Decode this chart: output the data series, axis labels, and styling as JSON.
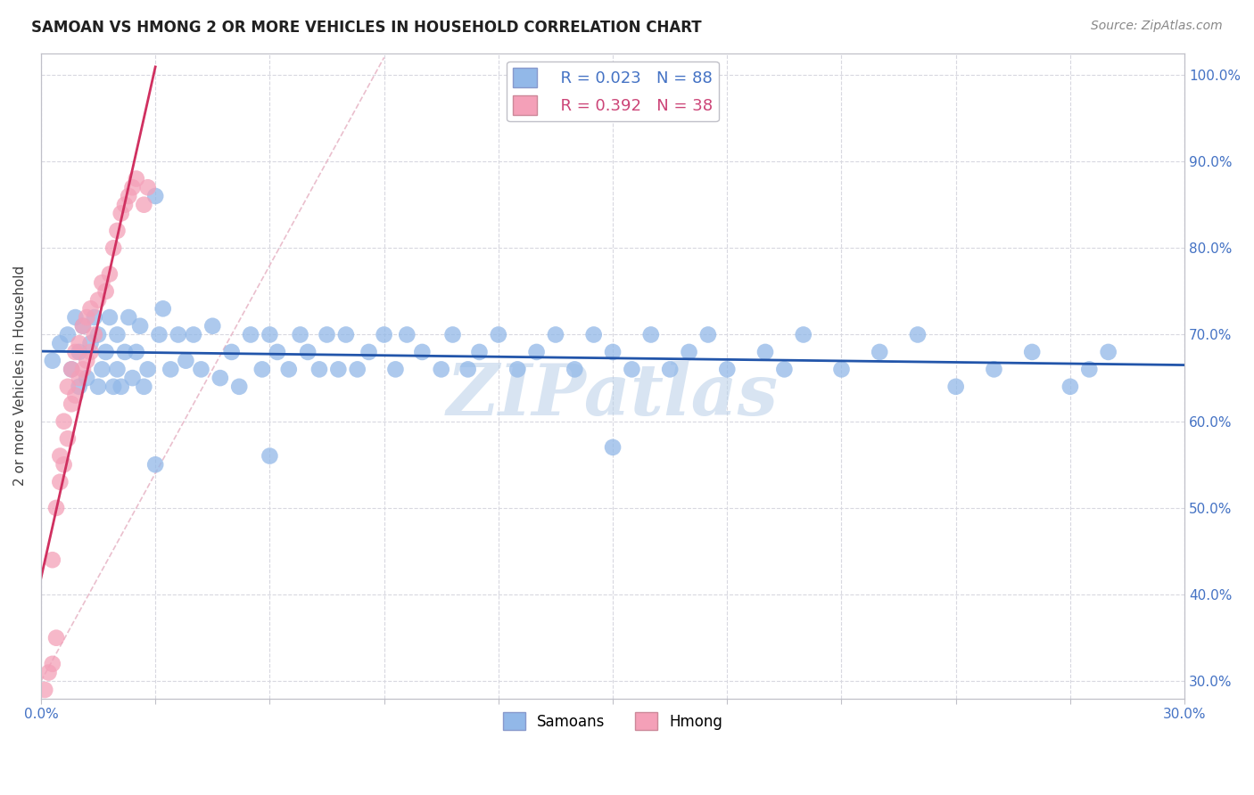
{
  "title": "SAMOAN VS HMONG 2 OR MORE VEHICLES IN HOUSEHOLD CORRELATION CHART",
  "source": "Source: ZipAtlas.com",
  "ylabel": "2 or more Vehicles in Household",
  "watermark": "ZIPatlas",
  "xlim": [
    0.0,
    0.3
  ],
  "ylim": [
    0.28,
    1.025
  ],
  "xtick_vals": [
    0.0,
    0.03,
    0.06,
    0.09,
    0.12,
    0.15,
    0.18,
    0.21,
    0.24,
    0.27,
    0.3
  ],
  "xtick_labels": [
    "0.0%",
    "",
    "",
    "",
    "",
    "",
    "",
    "",
    "",
    "",
    "30.0%"
  ],
  "ytick_vals": [
    0.3,
    0.4,
    0.5,
    0.6,
    0.7,
    0.8,
    0.9,
    1.0
  ],
  "ytick_labels": [
    "30.0%",
    "40.0%",
    "50.0%",
    "60.0%",
    "70.0%",
    "80.0%",
    "90.0%",
    "100.0%"
  ],
  "R_samoans": 0.023,
  "N_samoans": 88,
  "R_hmong": 0.392,
  "N_hmong": 38,
  "samoans_color": "#92b8e8",
  "hmong_color": "#f4a0b8",
  "samoans_line_color": "#2255aa",
  "hmong_line_color": "#d03060",
  "diagonal_color": "#e8b8c8",
  "samoans_x": [
    0.003,
    0.005,
    0.007,
    0.008,
    0.009,
    0.01,
    0.01,
    0.011,
    0.012,
    0.013,
    0.014,
    0.015,
    0.015,
    0.016,
    0.017,
    0.018,
    0.019,
    0.02,
    0.02,
    0.021,
    0.022,
    0.023,
    0.024,
    0.025,
    0.026,
    0.027,
    0.028,
    0.03,
    0.031,
    0.032,
    0.034,
    0.036,
    0.038,
    0.04,
    0.042,
    0.045,
    0.047,
    0.05,
    0.052,
    0.055,
    0.058,
    0.06,
    0.062,
    0.065,
    0.068,
    0.07,
    0.073,
    0.075,
    0.078,
    0.08,
    0.083,
    0.086,
    0.09,
    0.093,
    0.096,
    0.1,
    0.105,
    0.108,
    0.112,
    0.115,
    0.12,
    0.125,
    0.13,
    0.135,
    0.14,
    0.145,
    0.15,
    0.155,
    0.16,
    0.165,
    0.17,
    0.175,
    0.18,
    0.19,
    0.195,
    0.2,
    0.21,
    0.22,
    0.23,
    0.24,
    0.25,
    0.26,
    0.27,
    0.275,
    0.28,
    0.03,
    0.06,
    0.15
  ],
  "samoans_y": [
    0.67,
    0.69,
    0.7,
    0.66,
    0.72,
    0.64,
    0.68,
    0.71,
    0.65,
    0.69,
    0.72,
    0.64,
    0.7,
    0.66,
    0.68,
    0.72,
    0.64,
    0.66,
    0.7,
    0.64,
    0.68,
    0.72,
    0.65,
    0.68,
    0.71,
    0.64,
    0.66,
    0.86,
    0.7,
    0.73,
    0.66,
    0.7,
    0.67,
    0.7,
    0.66,
    0.71,
    0.65,
    0.68,
    0.64,
    0.7,
    0.66,
    0.7,
    0.68,
    0.66,
    0.7,
    0.68,
    0.66,
    0.7,
    0.66,
    0.7,
    0.66,
    0.68,
    0.7,
    0.66,
    0.7,
    0.68,
    0.66,
    0.7,
    0.66,
    0.68,
    0.7,
    0.66,
    0.68,
    0.7,
    0.66,
    0.7,
    0.68,
    0.66,
    0.7,
    0.66,
    0.68,
    0.7,
    0.66,
    0.68,
    0.66,
    0.7,
    0.66,
    0.68,
    0.7,
    0.64,
    0.66,
    0.68,
    0.64,
    0.66,
    0.68,
    0.55,
    0.56,
    0.57
  ],
  "hmong_x": [
    0.001,
    0.002,
    0.003,
    0.003,
    0.004,
    0.004,
    0.005,
    0.005,
    0.006,
    0.006,
    0.007,
    0.007,
    0.008,
    0.008,
    0.009,
    0.009,
    0.01,
    0.01,
    0.011,
    0.011,
    0.012,
    0.012,
    0.013,
    0.013,
    0.014,
    0.015,
    0.016,
    0.017,
    0.018,
    0.019,
    0.02,
    0.021,
    0.022,
    0.023,
    0.024,
    0.025,
    0.027,
    0.028
  ],
  "hmong_y": [
    0.29,
    0.31,
    0.32,
    0.44,
    0.35,
    0.5,
    0.53,
    0.56,
    0.55,
    0.6,
    0.58,
    0.64,
    0.62,
    0.66,
    0.63,
    0.68,
    0.65,
    0.69,
    0.66,
    0.71,
    0.67,
    0.72,
    0.68,
    0.73,
    0.7,
    0.74,
    0.76,
    0.75,
    0.77,
    0.8,
    0.82,
    0.84,
    0.85,
    0.86,
    0.87,
    0.88,
    0.85,
    0.87
  ]
}
